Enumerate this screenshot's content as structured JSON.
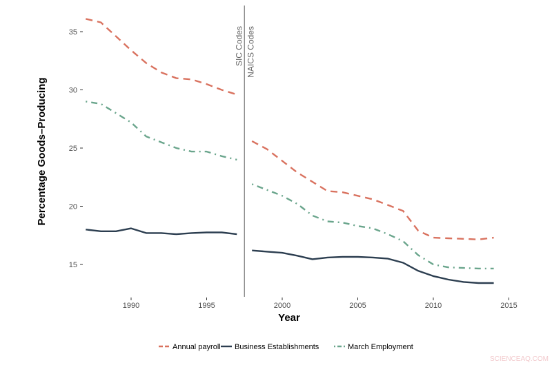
{
  "chart_data": {
    "type": "line",
    "title": "",
    "xlabel": "Year",
    "ylabel": "Percentage Goods–Producing",
    "xlim": [
      1985.5,
      2016.5
    ],
    "ylim": [
      12.5,
      36.3
    ],
    "xticks": [
      1990,
      1995,
      2000,
      2005,
      2010,
      2015
    ],
    "yticks": [
      15,
      20,
      25,
      30,
      35
    ],
    "grid": false,
    "legend_position": "bottom",
    "divider": {
      "x": 1997.5,
      "label_left": "SIC Codes",
      "label_right": "NAICS Codes"
    },
    "segments": [
      {
        "x": [
          1987,
          1988,
          1989,
          1990,
          1991,
          1992,
          1993,
          1994,
          1995,
          1996,
          1997
        ]
      },
      {
        "x": [
          1998,
          1999,
          2000,
          2001,
          2002,
          2003,
          2004,
          2005,
          2006,
          2007,
          2008,
          2009,
          2010,
          2011,
          2012,
          2013,
          2014
        ]
      }
    ],
    "series": [
      {
        "name": "Annual payroll",
        "color": "#d9725f",
        "dash": "10,7",
        "values": [
          [
            36.1,
            35.8,
            34.6,
            33.4,
            32.3,
            31.5,
            31.0,
            30.9,
            30.5,
            30.0,
            29.6
          ],
          [
            25.6,
            24.9,
            23.9,
            22.9,
            22.1,
            21.3,
            21.2,
            20.9,
            20.6,
            20.1,
            19.6,
            17.9,
            17.3,
            17.25,
            17.2,
            17.15,
            17.3
          ]
        ]
      },
      {
        "name": "Business Establishments",
        "color": "#2c3e50",
        "dash": "",
        "values": [
          [
            18.0,
            17.85,
            17.85,
            18.1,
            17.7,
            17.7,
            17.6,
            17.7,
            17.75,
            17.75,
            17.6
          ],
          [
            16.2,
            16.1,
            16.0,
            15.75,
            15.45,
            15.6,
            15.65,
            15.65,
            15.6,
            15.5,
            15.15,
            14.45,
            14.0,
            13.7,
            13.5,
            13.4,
            13.4
          ]
        ]
      },
      {
        "name": "March Employment",
        "color": "#6aa58c",
        "dash": "2,6,9,6",
        "values": [
          [
            29.0,
            28.8,
            28.0,
            27.2,
            26.0,
            25.5,
            25.0,
            24.7,
            24.7,
            24.3,
            24.0
          ],
          [
            21.9,
            21.4,
            20.9,
            20.2,
            19.2,
            18.7,
            18.6,
            18.3,
            18.1,
            17.6,
            17.0,
            15.8,
            15.0,
            14.75,
            14.7,
            14.65,
            14.65
          ]
        ]
      }
    ]
  },
  "watermark": "SCIENCEAQ.COM"
}
